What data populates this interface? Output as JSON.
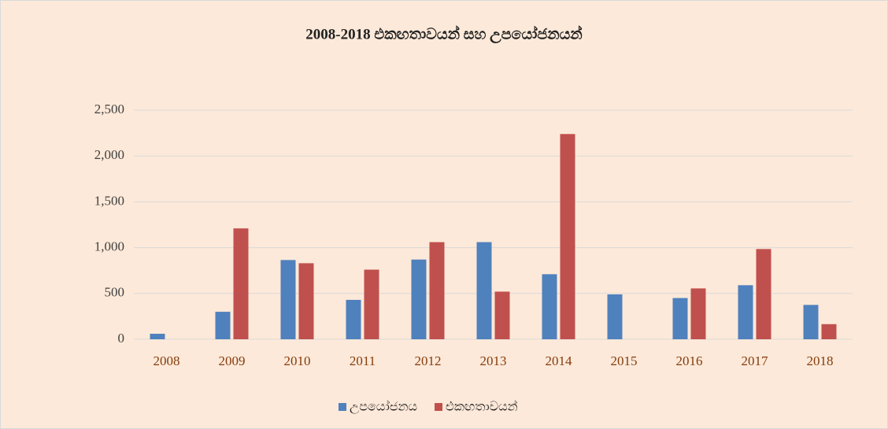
{
  "chart_data": {
    "type": "bar",
    "title": "2008-2018 එකඟතාවයන් සහ උපයෝජනයන්",
    "categories": [
      "2008",
      "2009",
      "2010",
      "2011",
      "2012",
      "2013",
      "2014",
      "2015",
      "2016",
      "2017",
      "2018"
    ],
    "series": [
      {
        "name": "උපයෝජනය",
        "color": "#4f81bd",
        "values": [
          60,
          300,
          865,
          430,
          870,
          1060,
          710,
          490,
          450,
          590,
          375
        ]
      },
      {
        "name": "එකඟතාවයන්",
        "color": "#c0504d",
        "values": [
          0,
          1210,
          830,
          760,
          1060,
          520,
          2240,
          0,
          555,
          985,
          165
        ]
      }
    ],
    "ylim": [
      0,
      2500
    ],
    "yticks": [
      0,
      500,
      {
        "value": 1000,
        "label": "1,000"
      },
      {
        "value": 1500,
        "label": "1,500"
      },
      {
        "value": 2000,
        "label": "2,000"
      },
      {
        "value": 2500,
        "label": "2,500"
      }
    ],
    "grid": true,
    "legend": "bottom"
  }
}
